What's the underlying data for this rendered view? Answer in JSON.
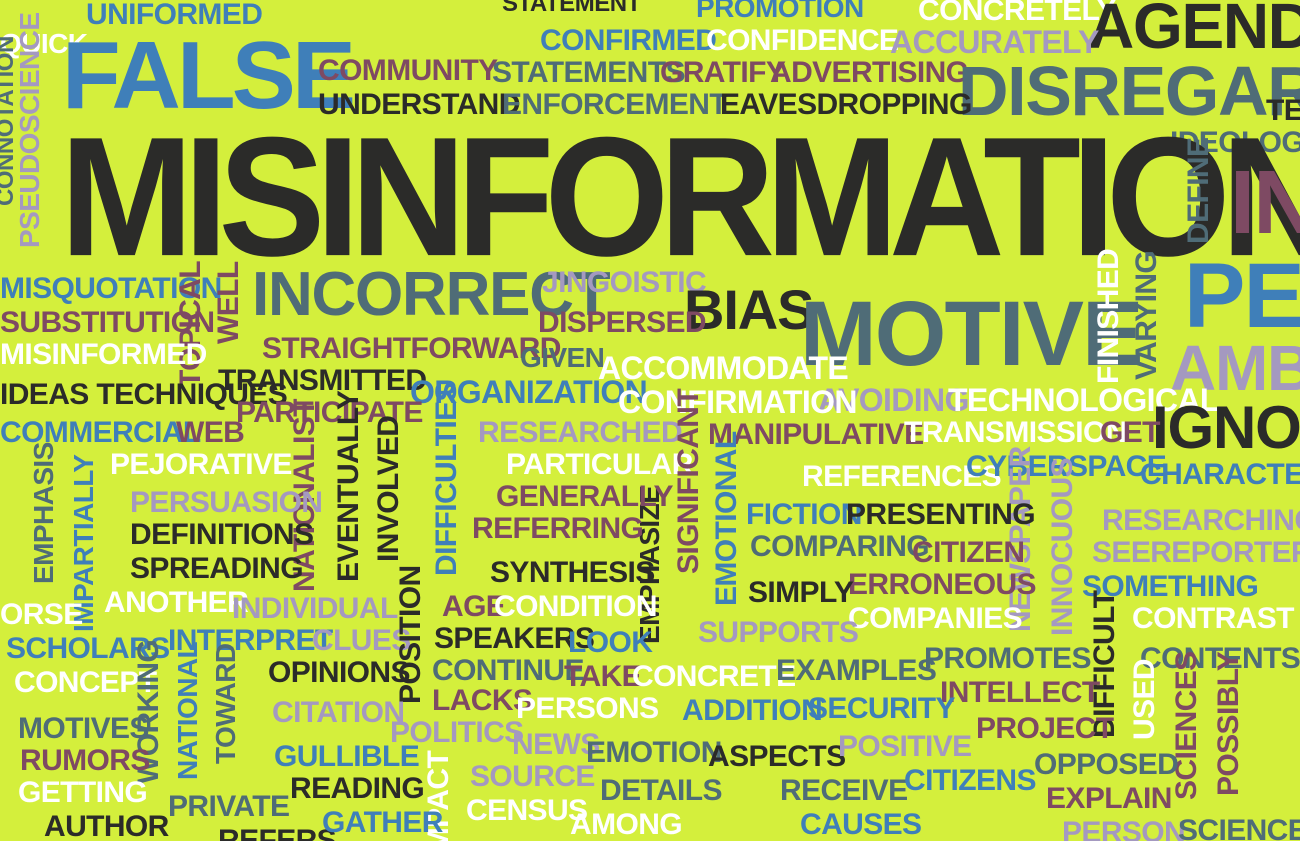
{
  "palette": {
    "background": "#d4ef3c",
    "black": "#2b2b29",
    "blue": "#3f7fb9",
    "slate": "#4f6c77",
    "plum": "#7e4a63",
    "lavender": "#a499c0",
    "white": "#ffffff"
  },
  "words": {
    "uniformed": "UNIFORMED",
    "false": "FALSE",
    "quick": "QUICK",
    "community": "COMMUNITY",
    "understand": "UNDERSTAND",
    "statement": "STATEMENT",
    "promotion": "PROMOTION",
    "concretely": "CONCRETELY",
    "agenda": "AGENDA",
    "confirmed": "CONFIRMED",
    "confidence": "CONFIDENCE",
    "accurately": "ACCURATELY",
    "statements": "STATEMENTS",
    "gratify": "GRATIFY",
    "advertising": "ADVERTISING",
    "disregard": "DISREGARD",
    "enforcement": "ENFORCEMENT",
    "eavesdropping": "EAVESDROPPING",
    "misinformation": "MISINFORMATION",
    "pseudoscience": "PSEUDOSCIENCE",
    "connotation": "CONNOTATION",
    "ideologic": "IDEOLOGIC",
    "define": "DEFINE",
    "in": "IN",
    "ter": "TER",
    "misquotation": "MISQUOTATION",
    "incorrect": "INCORRECT",
    "jingoistic": "JINGOISTIC",
    "bias": "BIAS",
    "motive": "MOTIVE",
    "pe": "PE",
    "ambi": "AMBI",
    "substitution": "SUBSTITUTION",
    "dispersed": "DISPERSED",
    "topical": "TOPICAL",
    "well": "WELL",
    "finished": "FINISHED",
    "varying": "VARYING",
    "misinformed": "MISINFORMED",
    "straightforward": "STRAIGHTFORWARD",
    "given": "GIVEN",
    "accommodate": "ACCOMMODATE",
    "transmitted": "TRANSMITTED",
    "ideas_techniques": "IDEAS TECHNIQUES",
    "organization": "ORGANIZATION",
    "avoiding": "AVOIDING",
    "technological": "TECHNOLOGICAL",
    "confirmation": "CONFIRMATION",
    "participate": "PARTICIPATE",
    "ignor": "IGNOR",
    "commercial": "COMMERCIAL",
    "web": "WEB",
    "researched": "RESEARCHED",
    "manipulative": "MANIPULATIVE",
    "transmission": "TRANSMISSION",
    "get": "GET",
    "pejorative": "PEJORATIVE",
    "particular": "PARTICULAR",
    "references": "REFERENCES",
    "cyberspace": "CYBERSPACE",
    "characteri": "CHARACTERI",
    "emphasis": "EMPHASIS",
    "persuasion": "PERSUASION",
    "generally": "GENERALLY",
    "impartially": "IMPARTIALLY",
    "nationalist": "NATIONALIST",
    "eventually": "EVENTUALLY",
    "involved": "INVOLVED",
    "difficulties": "DIFFICULTIES",
    "significant": "SIGNIFICANT",
    "emotional": "EMOTIONAL",
    "fiction": "FICTION",
    "presenting": "PRESENTING",
    "researching": "RESEARCHING",
    "newspaper": "NEWSPAPER",
    "innocuous": "INNOCUOUS",
    "definitions": "DEFINITIONS",
    "referring": "REFERRING",
    "emphasize": "EMPHASIZE",
    "comparing": "COMPARING",
    "citizen": "CITIZEN",
    "seereporters": "SEEREPORTERS",
    "spreading": "SPREADING",
    "synthesis": "SYNTHESIS",
    "erroneous": "ERRONEOUS",
    "simply": "SIMPLY",
    "something": "SOMETHING",
    "orse": "ORSE",
    "another": "ANOTHER",
    "individual": "INDIVIDUAL",
    "age": "AGE",
    "condition": "CONDITION",
    "companies": "COMPANIES",
    "contrast": "CONTRAST",
    "scholars": "SCHOLARS",
    "interpret": "INTERPRET",
    "clues": "CLUES",
    "speakers": "SPEAKERS",
    "look": "LOOK",
    "supports": "SUPPORTS",
    "position": "POSITION",
    "difficult": "DIFFICULT",
    "concept": "CONCEPT",
    "opinions": "OPINIONS",
    "continue": "CONTINUE",
    "take": "TAKE",
    "concrete": "CONCRETE",
    "examples": "EXAMPLES",
    "promotes": "PROMOTES",
    "contents": "CONTENTS",
    "national": "NATIONAL",
    "toward": "TOWARD",
    "working": "WORKING",
    "lacks": "LACKS",
    "intellect": "INTELLECT",
    "used": "USED",
    "sciences": "SCIENCES",
    "possibly": "POSSIBLY",
    "citation": "CITATION",
    "persons": "PERSONS",
    "addition": "ADDITION",
    "security": "SECURITY",
    "motives": "MOTIVES",
    "project": "PROJECT",
    "politics": "POLITICS",
    "rumors": "RUMORS",
    "gullible": "GULLIBLE",
    "news": "NEWS",
    "emotion": "EMOTION",
    "aspects": "ASPECTS",
    "positive": "POSITIVE",
    "opposed": "OPPOSED",
    "getting": "GETTING",
    "reading": "READING",
    "source": "SOURCE",
    "details": "DETAILS",
    "receive": "RECEIVE",
    "citizens": "CITIZENS",
    "explain": "EXPLAIN",
    "impact": "IMPACT",
    "author": "AUTHOR",
    "private": "PRIVATE",
    "gather": "GATHER",
    "census": "CENSUS",
    "among": "AMONG",
    "causes": "CAUSES",
    "science": "SCIENCE",
    "refers": "REFERS",
    "person": "PERSON",
    "ideo": "IDEO"
  }
}
